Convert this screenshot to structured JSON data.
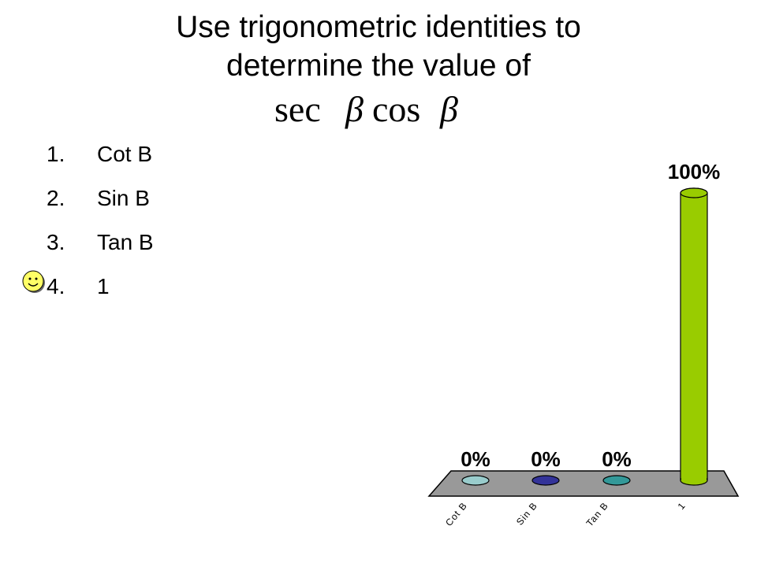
{
  "slide": {
    "title_line1": "Use trigonometric identities to",
    "title_line2": "determine the value of",
    "expression": {
      "word1": "sec",
      "symbol1": "β",
      "word2": "cos",
      "symbol2": "β"
    }
  },
  "answers": [
    {
      "num": "1.",
      "text": "Cot B"
    },
    {
      "num": "2.",
      "text": "Sin B"
    },
    {
      "num": "3.",
      "text": "Tan B"
    },
    {
      "num": "4.",
      "text": "1",
      "correct": true
    }
  ],
  "colors": {
    "bar_cot": "#99cccc",
    "bar_sin": "#333399",
    "bar_tan": "#339999",
    "bar_one": "#99cc00",
    "floor": "#999999",
    "smiley": "#ffff66"
  },
  "icons": {
    "correct_marker": "smiley-face-icon"
  },
  "chart_data": {
    "type": "bar",
    "categories": [
      "Cot B",
      "Sin B",
      "Tan B",
      "1"
    ],
    "values": [
      0,
      0,
      0,
      100
    ],
    "labels": [
      "0%",
      "0%",
      "0%",
      "100%"
    ],
    "ylim": [
      0,
      100
    ],
    "grid": false,
    "legend": "none"
  }
}
